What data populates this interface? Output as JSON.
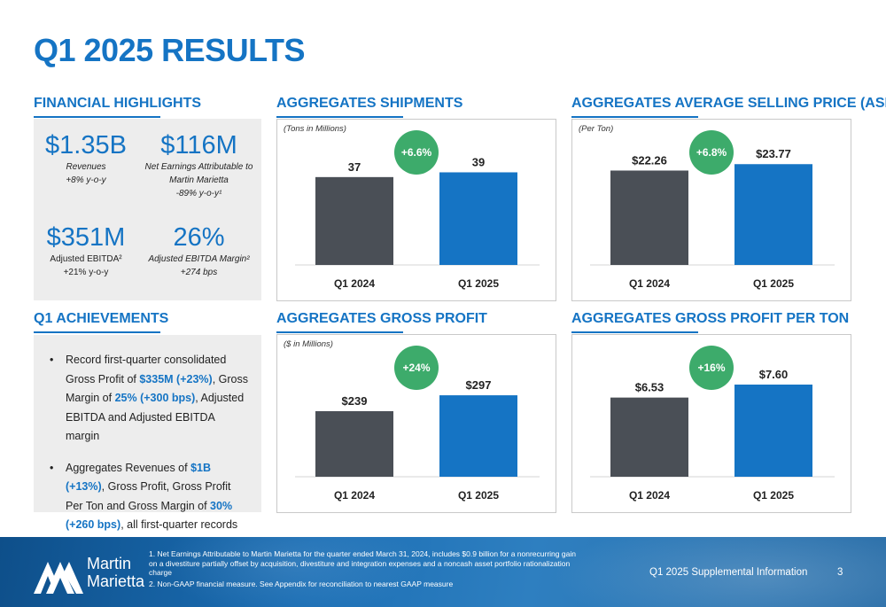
{
  "page_title": "Q1 2025 RESULTS",
  "financial_highlights": {
    "heading": "FINANCIAL HIGHLIGHTS",
    "kpis": [
      {
        "value": "$1.35B",
        "label": "Revenues",
        "sub": "+8% y-o-y",
        "sub2": ""
      },
      {
        "value": "$116M",
        "label": "Net Earnings Attributable to",
        "sub": "Martin Marietta",
        "sub2": "-89% y-o-y¹"
      },
      {
        "value": "$351M",
        "label": "Adjusted EBITDA²",
        "sub": "+21% y-o-y",
        "sub2": ""
      },
      {
        "value": "26%",
        "label": "Adjusted EBITDA Margin²",
        "sub": "+274 bps",
        "sub2": ""
      }
    ]
  },
  "achievements": {
    "heading": "Q1 ACHIEVEMENTS",
    "bullet1": {
      "t1": "Record first-quarter consolidated Gross Profit of ",
      "h1": "$335M (+23%)",
      "t2": ", Gross Margin of ",
      "h2": "25% (+300 bps)",
      "t3": ", Adjusted EBITDA and Adjusted EBITDA margin"
    },
    "bullet2": {
      "t1": "Aggregates Revenues of ",
      "h1": "$1B (+13%)",
      "t2": ", Gross Profit, Gross Profit Per Ton and Gross Margin of ",
      "h2": "30% (+260 bps)",
      "t3": ", all first-quarter records"
    }
  },
  "colors": {
    "accent": "#1574c4",
    "bar_2024": "#4a4f56",
    "bar_2025": "#1574c4",
    "badge": "#3dab6b"
  },
  "chart_data": [
    {
      "id": "shipments",
      "type": "bar",
      "title": "AGGREGATES SHIPMENTS",
      "unit_note": "(Tons in Millions)",
      "change": "+6.6%",
      "categories": [
        "Q1 2024",
        "Q1 2025"
      ],
      "values": [
        37,
        39
      ],
      "labels": [
        "37",
        "39"
      ],
      "ylim": [
        0,
        50
      ]
    },
    {
      "id": "asp",
      "type": "bar",
      "title": "AGGREGATES AVERAGE SELLING PRICE (ASP)",
      "unit_note": "(Per Ton)",
      "change": "+6.8%",
      "categories": [
        "Q1 2024",
        "Q1 2025"
      ],
      "values": [
        22.26,
        23.77
      ],
      "labels": [
        "$22.26",
        "$23.77"
      ],
      "ylim": [
        0,
        28
      ]
    },
    {
      "id": "gross_profit",
      "type": "bar",
      "title": "AGGREGATES GROSS PROFIT",
      "unit_note": "($ in Millions)",
      "change": "+24%",
      "categories": [
        "Q1 2024",
        "Q1 2025"
      ],
      "values": [
        239,
        297
      ],
      "labels": [
        "$239",
        "$297"
      ],
      "ylim": [
        0,
        420
      ]
    },
    {
      "id": "gp_per_ton",
      "type": "bar",
      "title": "AGGREGATES GROSS PROFIT PER TON",
      "unit_note": "",
      "change": "+16%",
      "categories": [
        "Q1 2024",
        "Q1 2025"
      ],
      "values": [
        6.53,
        7.6
      ],
      "labels": [
        "$6.53",
        "$7.60"
      ],
      "ylim": [
        0,
        9.5
      ]
    }
  ],
  "footer": {
    "logo_text_1": "Martin",
    "logo_text_2": "Marietta",
    "note1": "1. Net Earnings Attributable to Martin Marietta for the quarter ended March 31, 2024, includes $0.9 billion for a nonrecurring gain on a divestiture partially offset by acquisition, divestiture and integration expenses and a noncash asset portfolio rationalization charge",
    "note2": "2. Non-GAAP financial measure. See Appendix for reconciliation to nearest GAAP measure",
    "supplemental": "Q1 2025 Supplemental Information",
    "page_number": "3"
  }
}
